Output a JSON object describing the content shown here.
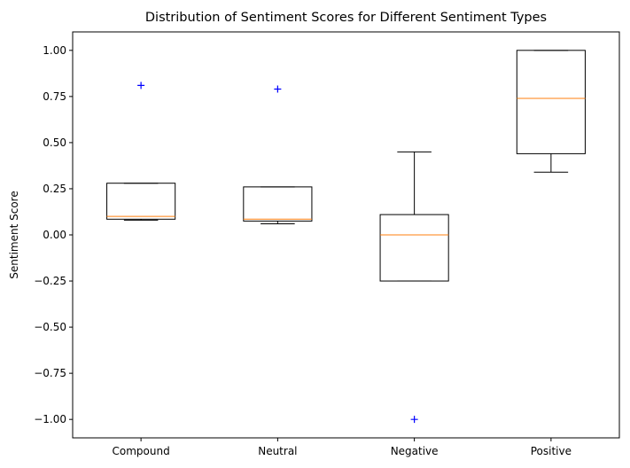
{
  "chart_data": {
    "type": "box",
    "title": "Distribution of Sentiment Scores for Different Sentiment Types",
    "xlabel": "",
    "ylabel": "Sentiment Score",
    "ylim": [
      -1.1,
      1.1
    ],
    "yticks": [
      -1.0,
      -0.75,
      -0.5,
      -0.25,
      0.0,
      0.25,
      0.5,
      0.75,
      1.0
    ],
    "ytick_labels": [
      "−1.00",
      "−0.75",
      "−0.50",
      "−0.25",
      "0.00",
      "0.25",
      "0.50",
      "0.75",
      "1.00"
    ],
    "categories": [
      "Compound",
      "Neutral",
      "Negative",
      "Positive"
    ],
    "boxes": [
      {
        "name": "Compound",
        "whisker_low": 0.08,
        "q1": 0.085,
        "median": 0.1,
        "q3": 0.28,
        "whisker_high": 0.28,
        "outliers": [
          0.81
        ]
      },
      {
        "name": "Neutral",
        "whisker_low": 0.06,
        "q1": 0.075,
        "median": 0.085,
        "q3": 0.26,
        "whisker_high": 0.26,
        "outliers": [
          0.79
        ]
      },
      {
        "name": "Negative",
        "whisker_low": -0.25,
        "q1": -0.25,
        "median": 0.0,
        "q3": 0.11,
        "whisker_high": 0.45,
        "outliers": [
          -1.0
        ]
      },
      {
        "name": "Positive",
        "whisker_low": 0.34,
        "q1": 0.44,
        "median": 0.74,
        "q3": 1.0,
        "whisker_high": 1.0,
        "outliers": []
      }
    ],
    "grid": false,
    "colors": {
      "box": "#000000",
      "median": "#ff7f0e",
      "outlier": "#0000ff"
    }
  }
}
